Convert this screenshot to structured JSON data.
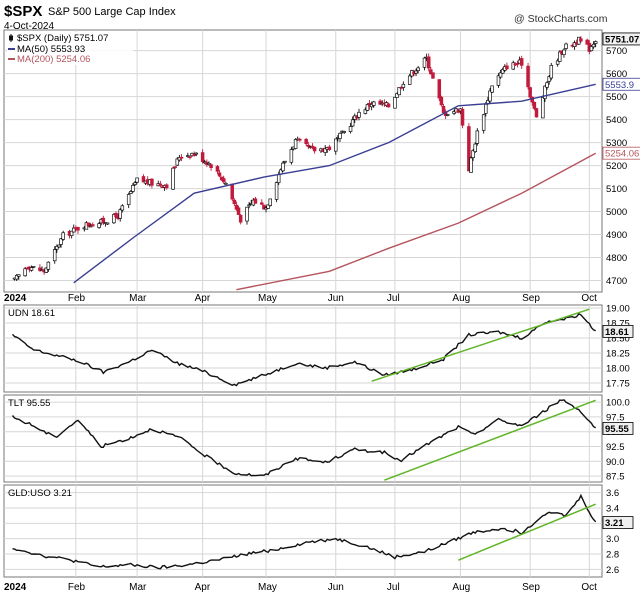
{
  "header": {
    "symbol": "$SPX",
    "name": "S&P 500 Large Cap Index",
    "date": "4-Oct-2024",
    "credit": "@ StockCharts.com"
  },
  "colors": {
    "candle_up": "#111111",
    "candle_down": "#c21a3c",
    "ma50": "#3a3f92",
    "ma200": "#b5545d",
    "trendline": "#5fb526",
    "indicator_line": "#111111",
    "grid": "#d6d6d6",
    "label_box": "#e8e8e8"
  },
  "chart_data": [
    {
      "type": "candlestick",
      "panel": "price",
      "legend": [
        {
          "label": "$SPX (Daily) 5751.07",
          "marker": "candle"
        },
        {
          "label": "MA(50) 5553.93",
          "color": "#3a3f92"
        },
        {
          "label": "MA(200) 5254.06",
          "color": "#b5545d"
        }
      ],
      "y_ticks": [
        "5700",
        "5600",
        "5500",
        "5400",
        "5300",
        "5200",
        "5100",
        "5000",
        "4900",
        "4800",
        "4700"
      ],
      "ylim": [
        4650,
        5790
      ],
      "price_series": [
        [
          "2024-01-03",
          4700
        ],
        [
          "2024-01-09",
          4765
        ],
        [
          "2024-01-17",
          4740
        ],
        [
          "2024-01-26",
          4895
        ],
        [
          "2024-02-05",
          4942
        ],
        [
          "2024-02-13",
          4953
        ],
        [
          "2024-02-21",
          4981
        ],
        [
          "2024-03-01",
          5137
        ],
        [
          "2024-03-08",
          5123
        ],
        [
          "2024-03-15",
          5117
        ],
        [
          "2024-03-21",
          5241
        ],
        [
          "2024-03-28",
          5254
        ],
        [
          "2024-04-05",
          5204
        ],
        [
          "2024-04-12",
          5123
        ],
        [
          "2024-04-19",
          4967
        ],
        [
          "2024-04-25",
          5048
        ],
        [
          "2024-05-01",
          5018
        ],
        [
          "2024-05-08",
          5187
        ],
        [
          "2024-05-15",
          5308
        ],
        [
          "2024-05-23",
          5267
        ],
        [
          "2024-05-31",
          5278
        ],
        [
          "2024-06-07",
          5347
        ],
        [
          "2024-06-14",
          5431
        ],
        [
          "2024-06-20",
          5473
        ],
        [
          "2024-06-28",
          5460
        ],
        [
          "2024-07-05",
          5567
        ],
        [
          "2024-07-16",
          5667
        ],
        [
          "2024-07-24",
          5427
        ],
        [
          "2024-08-01",
          5446
        ],
        [
          "2024-08-05",
          5186
        ],
        [
          "2024-08-09",
          5344
        ],
        [
          "2024-08-16",
          5554
        ],
        [
          "2024-08-23",
          5634
        ],
        [
          "2024-08-30",
          5648
        ],
        [
          "2024-09-06",
          5408
        ],
        [
          "2024-09-13",
          5626
        ],
        [
          "2024-09-19",
          5713
        ],
        [
          "2024-09-26",
          5745
        ],
        [
          "2024-10-01",
          5709
        ],
        [
          "2024-10-04",
          5751
        ]
      ],
      "ma50_series": [
        [
          "2024-01-31",
          4690
        ],
        [
          "2024-02-28",
          4885
        ],
        [
          "2024-03-28",
          5080
        ],
        [
          "2024-04-30",
          5150
        ],
        [
          "2024-05-31",
          5200
        ],
        [
          "2024-06-28",
          5300
        ],
        [
          "2024-07-31",
          5460
        ],
        [
          "2024-08-30",
          5480
        ],
        [
          "2024-10-04",
          5553.93
        ]
      ],
      "ma200_series": [
        [
          "2024-04-17",
          4660
        ],
        [
          "2024-05-31",
          4740
        ],
        [
          "2024-06-28",
          4840
        ],
        [
          "2024-07-31",
          4950
        ],
        [
          "2024-08-30",
          5080
        ],
        [
          "2024-10-04",
          5254.06
        ]
      ],
      "last_value_labels": [
        {
          "text": "5751.07",
          "value": 5751.07
        },
        {
          "text": "5553.9",
          "value": 5553.93
        },
        {
          "text": "5254.06",
          "value": 5254.06
        }
      ]
    },
    {
      "type": "line",
      "panel": "UDN",
      "legend": "UDN 18.61",
      "y_ticks": [
        "19.00",
        "18.75",
        "18.50",
        "18.25",
        "18.00",
        "17.75"
      ],
      "ylim": [
        17.6,
        19.05
      ],
      "series": [
        [
          "2024-01-02",
          18.55
        ],
        [
          "2024-01-12",
          18.3
        ],
        [
          "2024-01-24",
          18.2
        ],
        [
          "2024-02-02",
          18.12
        ],
        [
          "2024-02-14",
          17.93
        ],
        [
          "2024-02-26",
          18.1
        ],
        [
          "2024-03-08",
          18.3
        ],
        [
          "2024-03-20",
          18.08
        ],
        [
          "2024-04-01",
          17.95
        ],
        [
          "2024-04-16",
          17.72
        ],
        [
          "2024-04-30",
          17.88
        ],
        [
          "2024-05-15",
          18.08
        ],
        [
          "2024-05-29",
          18.0
        ],
        [
          "2024-06-12",
          18.1
        ],
        [
          "2024-06-26",
          17.88
        ],
        [
          "2024-07-10",
          17.98
        ],
        [
          "2024-07-24",
          18.15
        ],
        [
          "2024-08-05",
          18.55
        ],
        [
          "2024-08-19",
          18.6
        ],
        [
          "2024-08-30",
          18.5
        ],
        [
          "2024-09-11",
          18.78
        ],
        [
          "2024-09-20",
          18.82
        ],
        [
          "2024-09-27",
          18.9
        ],
        [
          "2024-10-04",
          18.61
        ]
      ],
      "trendline": [
        [
          "2024-06-20",
          17.78
        ],
        [
          "2024-10-01",
          18.98
        ]
      ],
      "last_value_label": "18.61"
    },
    {
      "type": "line",
      "panel": "TLT",
      "legend": "TLT 95.55",
      "y_ticks": [
        "100.0",
        "97.5",
        "95.0",
        "92.5",
        "90.0",
        "87.5"
      ],
      "ylim": [
        86.5,
        101.2
      ],
      "series": [
        [
          "2024-01-02",
          97.5
        ],
        [
          "2024-01-12",
          96.0
        ],
        [
          "2024-01-22",
          94.0
        ],
        [
          "2024-02-02",
          97.0
        ],
        [
          "2024-02-13",
          92.5
        ],
        [
          "2024-02-27",
          94.0
        ],
        [
          "2024-03-08",
          95.5
        ],
        [
          "2024-03-21",
          94.0
        ],
        [
          "2024-04-02",
          91.0
        ],
        [
          "2024-04-16",
          88.0
        ],
        [
          "2024-04-30",
          87.5
        ],
        [
          "2024-05-15",
          90.5
        ],
        [
          "2024-05-29",
          89.8
        ],
        [
          "2024-06-12",
          92.0
        ],
        [
          "2024-06-26",
          91.5
        ],
        [
          "2024-07-03",
          90.0
        ],
        [
          "2024-07-17",
          93.0
        ],
        [
          "2024-07-31",
          95.8
        ],
        [
          "2024-08-07",
          94.5
        ],
        [
          "2024-08-19",
          97.0
        ],
        [
          "2024-08-30",
          96.0
        ],
        [
          "2024-09-11",
          98.8
        ],
        [
          "2024-09-18",
          100.5
        ],
        [
          "2024-09-27",
          98.5
        ],
        [
          "2024-10-04",
          95.55
        ]
      ],
      "trendline": [
        [
          "2024-06-26",
          86.8
        ],
        [
          "2024-10-04",
          100.3
        ]
      ],
      "last_value_label": "95.55"
    },
    {
      "type": "line",
      "panel": "GLD:USO",
      "legend": "GLD:USO 3.21",
      "y_ticks": [
        "3.6",
        "3.4",
        "3.2",
        "3.0",
        "2.8",
        "2.6"
      ],
      "ylim": [
        2.5,
        3.7
      ],
      "series": [
        [
          "2024-01-02",
          2.88
        ],
        [
          "2024-01-16",
          2.78
        ],
        [
          "2024-01-30",
          2.72
        ],
        [
          "2024-02-12",
          2.63
        ],
        [
          "2024-02-26",
          2.66
        ],
        [
          "2024-03-11",
          2.62
        ],
        [
          "2024-03-25",
          2.66
        ],
        [
          "2024-04-08",
          2.72
        ],
        [
          "2024-04-22",
          2.8
        ],
        [
          "2024-05-06",
          2.86
        ],
        [
          "2024-05-20",
          2.95
        ],
        [
          "2024-06-03",
          3.0
        ],
        [
          "2024-06-17",
          2.9
        ],
        [
          "2024-07-01",
          2.76
        ],
        [
          "2024-07-15",
          2.83
        ],
        [
          "2024-07-29",
          2.98
        ],
        [
          "2024-08-07",
          3.08
        ],
        [
          "2024-08-21",
          3.14
        ],
        [
          "2024-08-30",
          3.08
        ],
        [
          "2024-09-11",
          3.35
        ],
        [
          "2024-09-20",
          3.3
        ],
        [
          "2024-09-27",
          3.55
        ],
        [
          "2024-10-04",
          3.21
        ]
      ],
      "trendline": [
        [
          "2024-07-31",
          2.72
        ],
        [
          "2024-10-04",
          3.45
        ]
      ],
      "last_value_label": "3.21"
    }
  ],
  "x_axis": {
    "year_label": "2024",
    "months": [
      {
        "label": "Feb",
        "date": "2024-02-01"
      },
      {
        "label": "Mar",
        "date": "2024-03-01"
      },
      {
        "label": "Apr",
        "date": "2024-04-01"
      },
      {
        "label": "May",
        "date": "2024-05-01"
      },
      {
        "label": "Jun",
        "date": "2024-06-03"
      },
      {
        "label": "Jul",
        "date": "2024-07-01"
      },
      {
        "label": "Aug",
        "date": "2024-08-01"
      },
      {
        "label": "Sep",
        "date": "2024-09-03"
      },
      {
        "label": "Oct",
        "date": "2024-10-01"
      }
    ]
  }
}
